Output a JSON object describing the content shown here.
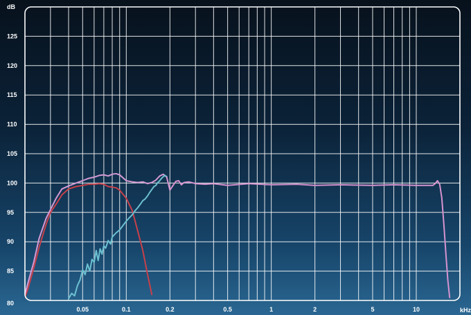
{
  "chart_data": {
    "type": "line",
    "title": "",
    "ylabel": "dB",
    "xlabel": "kHz",
    "x_scale": "log",
    "xlim": [
      0.02,
      20
    ],
    "ylim": [
      80,
      130
    ],
    "yticks": [
      85,
      90,
      95,
      100,
      105,
      110,
      115,
      120,
      125
    ],
    "ytick_labels": [
      "85",
      "90",
      "95",
      "100",
      "105",
      "110",
      "115",
      "120",
      "125"
    ],
    "xticks": [
      0.05,
      0.1,
      0.2,
      0.5,
      1,
      2,
      5,
      10
    ],
    "xtick_labels": [
      "0.05",
      "0.1",
      "0.2",
      "0.5",
      "1",
      "2",
      "5",
      "10"
    ],
    "bottom_left_label": "80",
    "minor_x_gridlines": [
      0.03,
      0.04,
      0.05,
      0.06,
      0.07,
      0.08,
      0.09,
      0.1,
      0.2,
      0.3,
      0.4,
      0.5,
      0.6,
      0.7,
      0.8,
      0.9,
      1,
      2,
      3,
      4,
      5,
      6,
      7,
      8,
      9,
      10
    ],
    "grid": true,
    "legend": "none",
    "series": [
      {
        "color": "#c8404a",
        "x": [
          0.02,
          0.021,
          0.023,
          0.025,
          0.028,
          0.03,
          0.033,
          0.036,
          0.04,
          0.045,
          0.05,
          0.055,
          0.06,
          0.065,
          0.07,
          0.075,
          0.08,
          0.085,
          0.09,
          0.1,
          0.11,
          0.12,
          0.13,
          0.14,
          0.15
        ],
        "y": [
          80.5,
          82,
          85.5,
          89,
          93,
          95,
          96.5,
          98,
          99,
          99.4,
          99.6,
          99.8,
          99.8,
          99.9,
          99.8,
          99.4,
          99.3,
          99.2,
          98.8,
          97.4,
          95.3,
          91.8,
          88.5,
          84.5,
          81
        ]
      },
      {
        "color": "#d49ad4",
        "x": [
          0.02,
          0.021,
          0.023,
          0.025,
          0.028,
          0.03,
          0.033,
          0.036,
          0.04,
          0.045,
          0.05,
          0.055,
          0.06,
          0.065,
          0.07,
          0.075,
          0.08,
          0.085,
          0.09,
          0.1,
          0.11,
          0.12,
          0.13,
          0.14,
          0.15,
          0.16,
          0.17,
          0.18,
          0.19
        ],
        "y": [
          81,
          83,
          86.5,
          90.5,
          94,
          95.5,
          97.5,
          99,
          99.5,
          100,
          100.4,
          100.8,
          101,
          101.3,
          101.4,
          101.2,
          101.5,
          101.6,
          101.4,
          100.4,
          100.2,
          100.1,
          100.2,
          99.9,
          100.1,
          100.5,
          101.2,
          101.5,
          101
        ]
      },
      {
        "color": "#6cc0d0",
        "x": [
          0.04,
          0.042,
          0.044,
          0.046,
          0.048,
          0.05,
          0.052,
          0.054,
          0.056,
          0.058,
          0.06,
          0.062,
          0.064,
          0.066,
          0.068,
          0.07,
          0.072,
          0.075,
          0.078,
          0.08,
          0.085,
          0.09,
          0.095,
          0.1,
          0.105,
          0.11,
          0.115,
          0.12,
          0.125,
          0.13,
          0.135,
          0.14,
          0.145,
          0.15,
          0.155,
          0.16,
          0.165,
          0.17,
          0.175,
          0.18,
          0.185,
          0.19
        ],
        "y": [
          80.3,
          81.2,
          80.8,
          82.5,
          83.5,
          85.2,
          84.4,
          86.2,
          85,
          87,
          86.5,
          88.5,
          86.8,
          88.8,
          87.9,
          89.3,
          88.9,
          90.2,
          89.6,
          90.8,
          91.5,
          92,
          92.8,
          93.5,
          94.1,
          94.6,
          95.3,
          95.8,
          96.4,
          97,
          97.3,
          97.8,
          98.4,
          98.9,
          99.4,
          99.6,
          100.1,
          100.4,
          100.8,
          101.1,
          101.3,
          101.1
        ]
      },
      {
        "color": "#d794d0",
        "x": [
          0.19,
          0.2,
          0.21,
          0.22,
          0.23,
          0.24,
          0.25,
          0.27,
          0.3,
          0.35,
          0.4,
          0.5,
          0.7,
          1,
          1.5,
          2,
          3,
          5,
          7,
          10,
          12,
          13,
          13.5,
          14,
          14.5,
          15,
          15.5,
          16,
          16.5,
          17
        ],
        "y": [
          101,
          98.8,
          99.6,
          100.3,
          100.4,
          99.7,
          100.1,
          100.2,
          99.9,
          99.8,
          99.9,
          99.6,
          99.9,
          99.7,
          99.8,
          99.6,
          99.7,
          99.6,
          99.7,
          99.6,
          99.6,
          99.6,
          99.9,
          100.4,
          99.8,
          97.5,
          93,
          88,
          83.5,
          80.5
        ]
      }
    ]
  }
}
